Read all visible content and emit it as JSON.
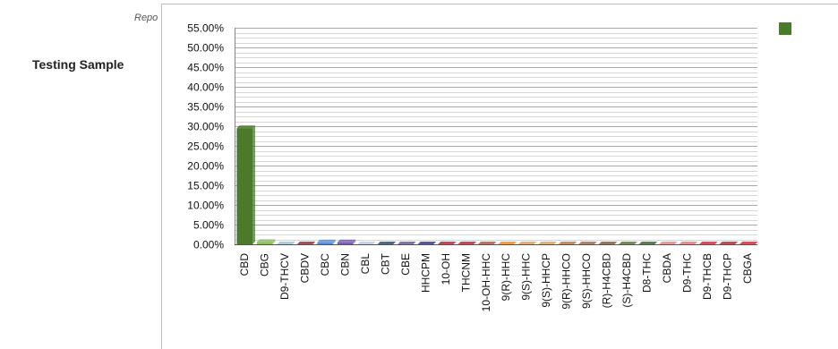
{
  "page": {
    "side_label": "Testing Sample",
    "report_tag": "Repo"
  },
  "chart_data": {
    "type": "bar",
    "categories": [
      "CBD",
      "CBG",
      "D9-THCV",
      "CBDV",
      "CBC",
      "CBN",
      "CBL",
      "CBT",
      "CBE",
      "HHCPM",
      "10-OH",
      "THCNM",
      "10-OH-HHC",
      "9(R)-HHC",
      "9(S)-HHC",
      "9(S)-HHCP",
      "9(R)-HHCO",
      "9(S)-HHCO",
      "(R)-H4CBD",
      "(S)-H4CBD",
      "D8-THC",
      "CBDA",
      "D9-THC",
      "D9-THCB",
      "D9-THCP",
      "CBGA"
    ],
    "values": [
      29.5,
      0.6,
      0,
      0,
      0.5,
      0.5,
      0,
      0,
      0,
      0,
      0,
      0,
      0,
      0,
      0,
      0,
      0,
      0,
      0,
      0,
      0,
      0,
      0,
      0,
      0,
      0
    ],
    "ylim": [
      0,
      55
    ],
    "yticks": [
      "0.00%",
      "5.00%",
      "10.00%",
      "15.00%",
      "20.00%",
      "25.00%",
      "30.00%",
      "35.00%",
      "40.00%",
      "45.00%",
      "50.00%",
      "55.00%"
    ],
    "grid": true,
    "legend_placement": "top-right",
    "colors": {
      "main_bar": "#4a7a2a",
      "categories": [
        "#4a7a2a",
        "#8fbf6a",
        "#9ec3dc",
        "#8a3a3a",
        "#5b8fd1",
        "#7a5fb3",
        "#b9c9ea",
        "#2f4d7a",
        "#6a5a9e",
        "#3a3a8a",
        "#a8323a",
        "#a8323a",
        "#b05a3a",
        "#e0903a",
        "#e0a060",
        "#e0a060",
        "#b87a4a",
        "#a86a4a",
        "#8a5a3a",
        "#5a7a3a",
        "#3a6a3a",
        "#e08a8a",
        "#e07a7a",
        "#c03a3a",
        "#b03030",
        "#c03a3a"
      ]
    },
    "legend": {
      "color": "#4a7a2a"
    }
  }
}
